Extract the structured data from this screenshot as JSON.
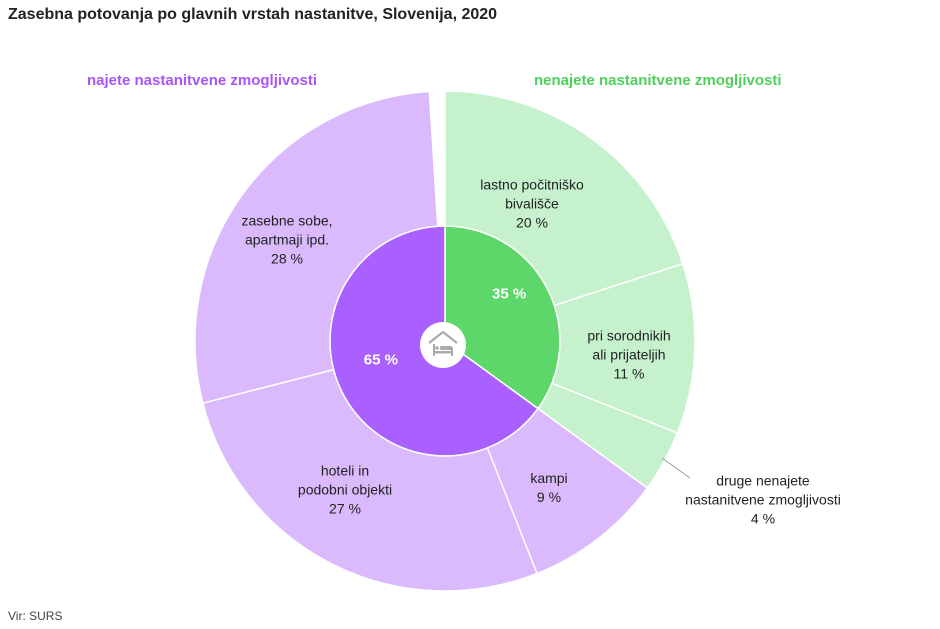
{
  "chart_data": {
    "type": "sunburst",
    "title": "Zasebna potovanja po glavnih vrstah nastanitve, Slovenija, 2020",
    "unit": "%",
    "center_icon": "bed-house-icon",
    "groups": [
      {
        "name": "nenajete nastanitvene zmogljivosti",
        "value": 35,
        "label": "35 %",
        "color": "#5dd66a",
        "title_color": "#4fcf5c",
        "children": [
          {
            "name": "lastno počitniško\nbivališče",
            "value": 20,
            "label": "20 %",
            "color": "#c6f1cd"
          },
          {
            "name": "pri sorodnikih\nali prijateljih",
            "value": 11,
            "label": "11 %",
            "color": "#c6f1cd"
          },
          {
            "name": "druge nenajete\nnastanitvene zmogljivosti",
            "value": 4,
            "label": "4 %",
            "color": "#c6f1cd"
          }
        ]
      },
      {
        "name": "najete nastanitvene zmogljivosti",
        "value": 65,
        "label": "65 %",
        "color": "#aa60fe",
        "title_color": "#a855f7",
        "children": [
          {
            "name": "kampi",
            "value": 9,
            "label": "9 %",
            "color": "#dab9fd"
          },
          {
            "name": "hoteli in\npodobni objekti",
            "value": 27,
            "label": "27 %",
            "color": "#dab9fd"
          },
          {
            "name": "zasebne sobe,\napartmaji ipd.",
            "value": 28,
            "label": "28 %",
            "color": "#dab9fd"
          }
        ]
      }
    ]
  },
  "source": "Vir: SURS"
}
